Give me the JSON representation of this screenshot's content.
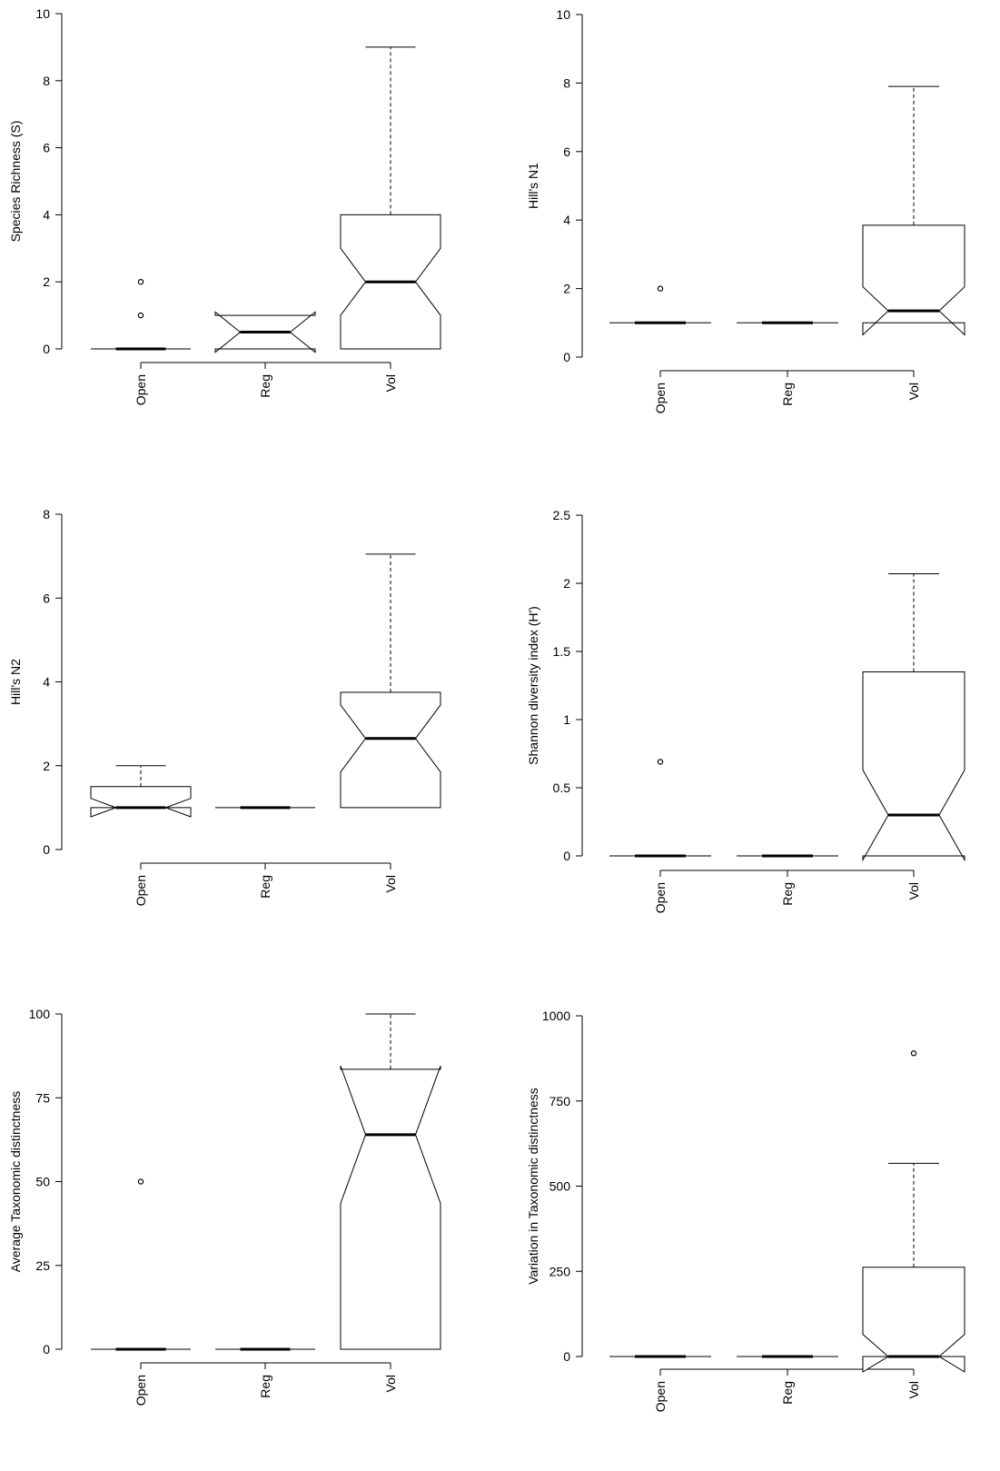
{
  "chart_data": [
    {
      "type": "boxplot",
      "ylabel": "Species Richness (S)",
      "categories": [
        "Open",
        "Reg",
        "Vol"
      ],
      "ylim": [
        0,
        10
      ],
      "yticks": [
        0,
        2,
        4,
        6,
        8,
        10
      ],
      "yticklabels": [
        "0",
        "2",
        "4",
        "6",
        "8",
        "10"
      ],
      "boxes": [
        {
          "min": 0,
          "q1": 0,
          "median": 0,
          "q3": 0,
          "max": 0,
          "notch_low": 0,
          "notch_high": 0,
          "outliers": [
            1,
            2
          ]
        },
        {
          "min": 0,
          "q1": 0,
          "median": 0.5,
          "q3": 1,
          "max": 1,
          "notch_low": -0.1,
          "notch_high": 1.1,
          "outliers": []
        },
        {
          "min": 0,
          "q1": 0,
          "median": 2,
          "q3": 4,
          "max": 9,
          "notch_low": 1,
          "notch_high": 3,
          "outliers": []
        }
      ]
    },
    {
      "type": "boxplot",
      "ylabel": "Hill's N1",
      "categories": [
        "Open",
        "Reg",
        "Vol"
      ],
      "ylim": [
        0,
        10
      ],
      "yticks": [
        0,
        2,
        4,
        6,
        8,
        10
      ],
      "yticklabels": [
        "0",
        "2",
        "4",
        "6",
        "8",
        "10"
      ],
      "boxes": [
        {
          "min": 1,
          "q1": 1,
          "median": 1,
          "q3": 1,
          "max": 1,
          "notch_low": 1,
          "notch_high": 1,
          "outliers": [
            2
          ]
        },
        {
          "min": 1,
          "q1": 1,
          "median": 1,
          "q3": 1,
          "max": 1,
          "notch_low": 1,
          "notch_high": 1,
          "outliers": []
        },
        {
          "min": 1,
          "q1": 1,
          "median": 1.35,
          "q3": 3.85,
          "max": 7.9,
          "notch_low": 0.65,
          "notch_high": 2.05,
          "outliers": []
        }
      ]
    },
    {
      "type": "boxplot",
      "ylabel": "Hill's N2",
      "categories": [
        "Open",
        "Reg",
        "Vol"
      ],
      "ylim": [
        0,
        8
      ],
      "yticks": [
        0,
        2,
        4,
        6,
        8
      ],
      "yticklabels": [
        "0",
        "2",
        "4",
        "6",
        "8"
      ],
      "boxes": [
        {
          "min": 1,
          "q1": 1,
          "median": 1,
          "q3": 1.5,
          "max": 2,
          "notch_low": 0.78,
          "notch_high": 1.22,
          "outliers": []
        },
        {
          "min": 1,
          "q1": 1,
          "median": 1,
          "q3": 1,
          "max": 1,
          "notch_low": 1,
          "notch_high": 1,
          "outliers": []
        },
        {
          "min": 1,
          "q1": 1,
          "median": 2.65,
          "q3": 3.75,
          "max": 7.05,
          "notch_low": 1.85,
          "notch_high": 3.45,
          "outliers": []
        }
      ]
    },
    {
      "type": "boxplot",
      "ylabel": "Shannon diversity index (H')",
      "categories": [
        "Open",
        "Reg",
        "Vol"
      ],
      "ylim": [
        0,
        2.5
      ],
      "yticks": [
        0,
        0.5,
        1,
        1.5,
        2,
        2.5
      ],
      "yticklabels": [
        "0",
        "0.5",
        "1",
        "1.5",
        "2",
        "2.5"
      ],
      "boxes": [
        {
          "min": 0,
          "q1": 0,
          "median": 0,
          "q3": 0,
          "max": 0,
          "notch_low": 0,
          "notch_high": 0,
          "outliers": [
            0.69
          ]
        },
        {
          "min": 0,
          "q1": 0,
          "median": 0,
          "q3": 0,
          "max": 0,
          "notch_low": 0,
          "notch_high": 0,
          "outliers": []
        },
        {
          "min": 0,
          "q1": 0,
          "median": 0.3,
          "q3": 1.35,
          "max": 2.07,
          "notch_low": -0.03,
          "notch_high": 0.63,
          "outliers": []
        }
      ]
    },
    {
      "type": "boxplot",
      "ylabel": "Average Taxonomic distinctness",
      "categories": [
        "Open",
        "Reg",
        "Vol"
      ],
      "ylim": [
        0,
        100
      ],
      "yticks": [
        0,
        25,
        50,
        75,
        100
      ],
      "yticklabels": [
        "0",
        "25",
        "50",
        "75",
        "100"
      ],
      "boxes": [
        {
          "min": 0,
          "q1": 0,
          "median": 0,
          "q3": 0,
          "max": 0,
          "notch_low": 0,
          "notch_high": 0,
          "outliers": [
            50
          ]
        },
        {
          "min": 0,
          "q1": 0,
          "median": 0,
          "q3": 0,
          "max": 0,
          "notch_low": 0,
          "notch_high": 0,
          "outliers": []
        },
        {
          "min": 0,
          "q1": 0,
          "median": 64,
          "q3": 83.5,
          "max": 100,
          "notch_low": 43.5,
          "notch_high": 84.5,
          "outliers": []
        }
      ]
    },
    {
      "type": "boxplot",
      "ylabel": "Variation in Taxonomic distinctness",
      "categories": [
        "Open",
        "Reg",
        "Vol"
      ],
      "ylim": [
        0,
        1000
      ],
      "yticks": [
        0,
        250,
        500,
        750,
        1000
      ],
      "yticklabels": [
        "0",
        "250",
        "500",
        "750",
        "1000"
      ],
      "boxes": [
        {
          "min": 0,
          "q1": 0,
          "median": 0,
          "q3": 0,
          "max": 0,
          "notch_low": 0,
          "notch_high": 0,
          "outliers": []
        },
        {
          "min": 0,
          "q1": 0,
          "median": 0,
          "q3": 0,
          "max": 0,
          "notch_low": 0,
          "notch_high": 0,
          "outliers": []
        },
        {
          "min": 0,
          "q1": 0,
          "median": 0,
          "q3": 262,
          "max": 567,
          "notch_low": -45,
          "notch_high": 65,
          "outliers": [
            890
          ]
        }
      ]
    }
  ]
}
